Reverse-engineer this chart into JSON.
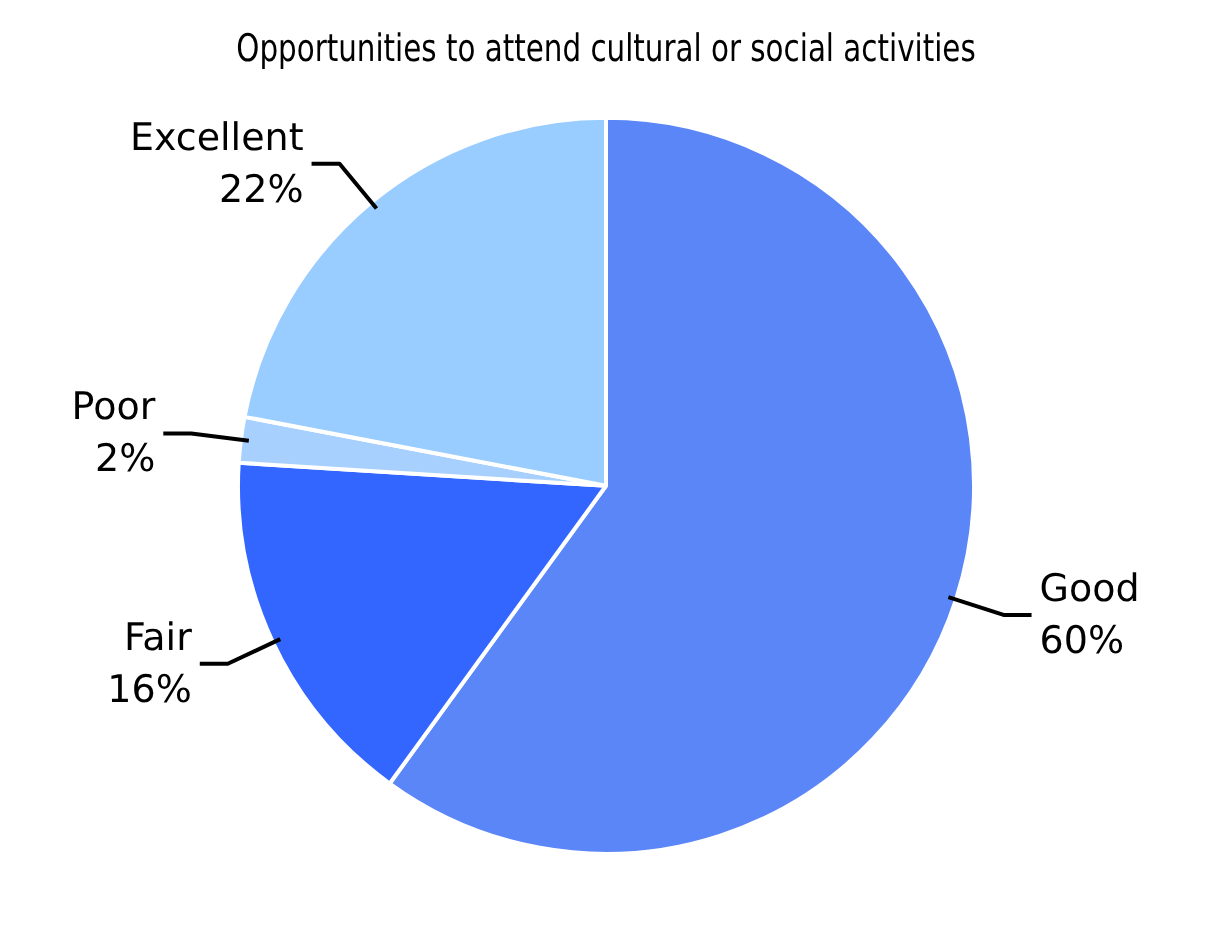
{
  "chart_data": {
    "type": "pie",
    "title": "Opportunities to attend cultural or social activities",
    "categories": [
      "Good",
      "Fair",
      "Poor",
      "Excellent"
    ],
    "values": [
      60,
      16,
      2,
      22
    ],
    "value_labels": [
      "60%",
      "16%",
      "2%",
      "22%"
    ],
    "colors": [
      "#5a86f8",
      "#3366ff",
      "#a8d0ff",
      "#99ccff"
    ]
  }
}
